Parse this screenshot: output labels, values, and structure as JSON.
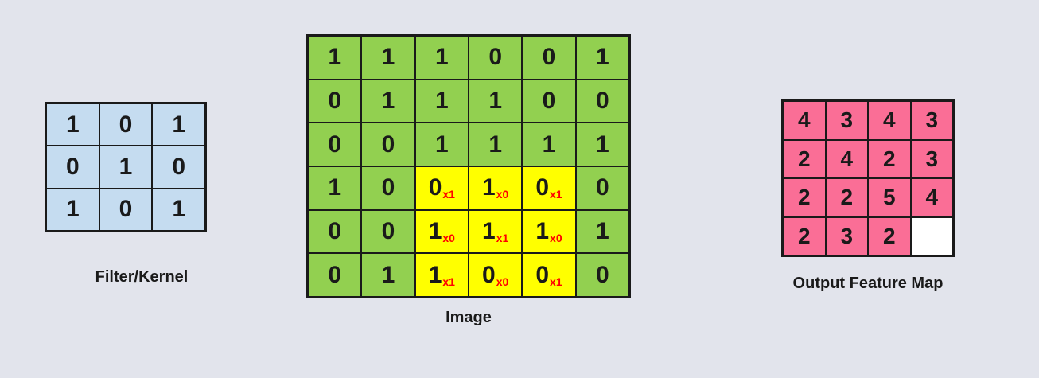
{
  "colors": {
    "background": "#e2e4ec",
    "grid_line": "#1a1a1a",
    "digit": "#1a1a1a",
    "subscript": "#ff0000",
    "filter_cell": "#c5dcf0",
    "image_cell": "#92d050",
    "highlight_cell": "#ffff00",
    "output_cell": "#fa6e96",
    "empty_cell": "#ffffff"
  },
  "filter": {
    "label": "Filter/Kernel",
    "rows": [
      [
        1,
        0,
        1
      ],
      [
        0,
        1,
        0
      ],
      [
        1,
        0,
        1
      ]
    ]
  },
  "image": {
    "label": "Image",
    "rows": [
      [
        1,
        1,
        1,
        0,
        0,
        1
      ],
      [
        0,
        1,
        1,
        1,
        0,
        0
      ],
      [
        0,
        0,
        1,
        1,
        1,
        1
      ],
      [
        1,
        0,
        0,
        1,
        0,
        0
      ],
      [
        0,
        0,
        1,
        1,
        1,
        1
      ],
      [
        0,
        1,
        1,
        0,
        0,
        0
      ]
    ],
    "highlight": {
      "row_start": 3,
      "col_start": 2,
      "rows": 3,
      "cols": 3
    },
    "kernel_subscripts": [
      [
        "x1",
        "x0",
        "x1"
      ],
      [
        "x0",
        "x1",
        "x0"
      ],
      [
        "x1",
        "x0",
        "x1"
      ]
    ]
  },
  "output": {
    "label": "Output Feature Map",
    "rows": [
      [
        4,
        3,
        4,
        3
      ],
      [
        2,
        4,
        2,
        3
      ],
      [
        2,
        2,
        5,
        4
      ],
      [
        2,
        3,
        2,
        null
      ]
    ]
  }
}
